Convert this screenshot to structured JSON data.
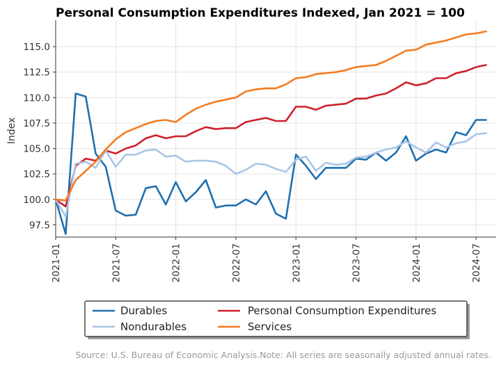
{
  "chart_data": {
    "type": "line",
    "title": "Personal Consumption Expenditures Indexed, Jan 2021 = 100",
    "xlabel": "",
    "ylabel": "Index",
    "ylim": [
      96.3,
      117.6
    ],
    "yticks": [
      97.5,
      100.0,
      102.5,
      105.0,
      107.5,
      110.0,
      112.5,
      115.0
    ],
    "ytick_labels": [
      "97.5",
      "100.0",
      "102.5",
      "105.0",
      "107.5",
      "110.0",
      "112.5",
      "115.0"
    ],
    "xticks": [
      "2021-01",
      "2021-07",
      "2022-01",
      "2022-07",
      "2023-01",
      "2023-07",
      "2024-01",
      "2024-07"
    ],
    "xlim": [
      "2021-01",
      "2024-09"
    ],
    "grid": true,
    "legend_position": "bottom",
    "source": "Source: U.S. Bureau of Economic Analysis.Note: All series are seasonally adjusted annual rates.",
    "x": [
      "2021-01",
      "2021-02",
      "2021-03",
      "2021-04",
      "2021-05",
      "2021-06",
      "2021-07",
      "2021-08",
      "2021-09",
      "2021-10",
      "2021-11",
      "2021-12",
      "2022-01",
      "2022-02",
      "2022-03",
      "2022-04",
      "2022-05",
      "2022-06",
      "2022-07",
      "2022-08",
      "2022-09",
      "2022-10",
      "2022-11",
      "2022-12",
      "2023-01",
      "2023-02",
      "2023-03",
      "2023-04",
      "2023-05",
      "2023-06",
      "2023-07",
      "2023-08",
      "2023-09",
      "2023-10",
      "2023-11",
      "2023-12",
      "2024-01",
      "2024-02",
      "2024-03",
      "2024-04",
      "2024-05",
      "2024-06",
      "2024-07",
      "2024-08"
    ],
    "series": [
      {
        "name": "Durables",
        "color": "#1f6faf",
        "values": [
          100.0,
          96.6,
          110.4,
          110.1,
          104.5,
          103.2,
          98.9,
          98.4,
          98.5,
          101.1,
          101.3,
          99.5,
          101.7,
          99.8,
          100.7,
          101.9,
          99.2,
          99.4,
          99.4,
          100.0,
          99.5,
          100.8,
          98.6,
          98.1,
          104.4,
          103.3,
          102.0,
          103.1,
          103.1,
          103.1,
          104.0,
          103.9,
          104.6,
          103.8,
          104.6,
          106.2,
          103.8,
          104.5,
          104.9,
          104.6,
          106.6,
          106.3,
          107.8,
          107.8
        ]
      },
      {
        "name": "Personal Consumption Expenditures",
        "color": "#d0202c",
        "values": [
          100.0,
          99.3,
          103.3,
          104.0,
          103.8,
          104.8,
          104.5,
          105.0,
          105.3,
          106.0,
          106.3,
          106.0,
          106.2,
          106.2,
          106.7,
          107.1,
          106.9,
          107.0,
          107.0,
          107.6,
          107.8,
          108.0,
          107.7,
          107.7,
          109.1,
          109.1,
          108.8,
          109.2,
          109.3,
          109.4,
          109.9,
          109.9,
          110.2,
          110.4,
          110.9,
          111.5,
          111.2,
          111.4,
          111.9,
          111.9,
          112.4,
          112.6,
          113.0,
          113.2
        ]
      },
      {
        "name": "Nondurables",
        "color": "#a9c5e6",
        "values": [
          100.0,
          98.3,
          103.5,
          103.7,
          103.1,
          104.8,
          103.2,
          104.4,
          104.4,
          104.8,
          104.9,
          104.2,
          104.3,
          103.7,
          103.8,
          103.8,
          103.7,
          103.3,
          102.5,
          102.9,
          103.5,
          103.4,
          103.0,
          102.7,
          103.9,
          104.2,
          102.8,
          103.6,
          103.4,
          103.5,
          104.1,
          104.2,
          104.6,
          104.9,
          105.1,
          105.7,
          105.1,
          104.6,
          105.6,
          105.1,
          105.5,
          105.7,
          106.4,
          106.5
        ]
      },
      {
        "name": "Services",
        "color": "#f47b20",
        "values": [
          100.0,
          99.9,
          101.9,
          102.8,
          103.7,
          104.9,
          105.9,
          106.6,
          107.0,
          107.4,
          107.7,
          107.8,
          107.6,
          108.3,
          108.9,
          109.3,
          109.6,
          109.8,
          110.0,
          110.6,
          110.8,
          110.9,
          110.9,
          111.3,
          111.9,
          112.0,
          112.3,
          112.4,
          112.5,
          112.7,
          113.0,
          113.1,
          113.2,
          113.6,
          114.1,
          114.6,
          114.7,
          115.2,
          115.4,
          115.6,
          115.9,
          116.2,
          116.3,
          116.5
        ]
      }
    ]
  },
  "legend": {
    "entries": [
      {
        "label": "Durables",
        "color": "#1f6faf"
      },
      {
        "label": "Personal Consumption Expenditures",
        "color": "#d0202c"
      },
      {
        "label": "Nondurables",
        "color": "#a9c5e6"
      },
      {
        "label": "Services",
        "color": "#f47b20"
      }
    ]
  }
}
